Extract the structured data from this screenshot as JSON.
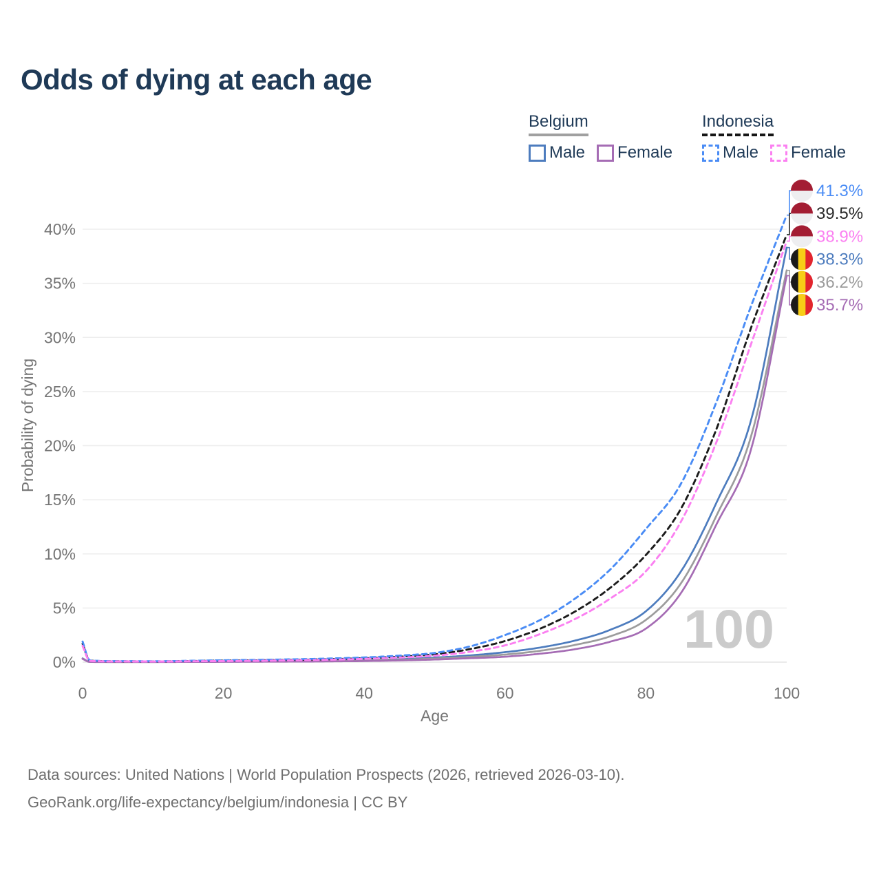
{
  "title": "Odds of dying at each age",
  "watermark_age": "100",
  "footer": {
    "line1": "Data sources: United Nations | World Population Prospects (2026, retrieved 2026-03-10).",
    "line2": "GeoRank.org/life-expectancy/belgium/indonesia | CC BY"
  },
  "legend": {
    "groups": [
      {
        "label": "Belgium",
        "line_style": "solid",
        "underline_color": "#a0a0a0",
        "items": [
          {
            "label": "Male",
            "color": "#4d7cbe"
          },
          {
            "label": "Female",
            "color": "#a56cb4"
          }
        ]
      },
      {
        "label": "Indonesia",
        "line_style": "dashed",
        "underline_color": "#161616",
        "items": [
          {
            "label": "Male",
            "color": "#4a8cf5"
          },
          {
            "label": "Female",
            "color": "#fb80f1"
          }
        ]
      }
    ]
  },
  "flags": {
    "indonesia": {
      "top": "#a31d33",
      "bottom": "#eeeef0"
    },
    "belgium": {
      "stripes": [
        "#1a1a1a",
        "#f7ce17",
        "#e2252e"
      ]
    }
  },
  "chart_data": {
    "type": "line",
    "title": "Odds of dying at each age",
    "xlabel": "Age",
    "ylabel": "Probability of dying",
    "xlim": [
      0,
      100
    ],
    "ylim": [
      0,
      43
    ],
    "grid": true,
    "x_ticks": [
      0,
      20,
      40,
      60,
      80,
      100
    ],
    "y_ticks": [
      0,
      5,
      10,
      15,
      20,
      25,
      30,
      35,
      40
    ],
    "y_tick_suffix": "%",
    "hover_age_indicator": "100",
    "ages": [
      0,
      1,
      5,
      10,
      15,
      20,
      25,
      30,
      35,
      40,
      45,
      50,
      55,
      60,
      65,
      70,
      75,
      80,
      85,
      90,
      95,
      100
    ],
    "series": [
      {
        "id": "belgium_male",
        "name": "Belgium Male",
        "country": "Belgium",
        "sex": "male",
        "color": "#4d7cbe",
        "dash": false,
        "end_value_pct": 38.3,
        "values": [
          0.35,
          0.03,
          0.02,
          0.02,
          0.04,
          0.07,
          0.08,
          0.1,
          0.13,
          0.18,
          0.27,
          0.42,
          0.62,
          0.92,
          1.35,
          2.0,
          3.0,
          4.7,
          8.4,
          14.7,
          22.5,
          38.3
        ]
      },
      {
        "id": "belgium_both",
        "name": "Belgium Both sexes",
        "country": "Belgium",
        "sex": "both",
        "color": "#9c9c9c",
        "dash": false,
        "end_value_pct": 36.2,
        "values": [
          0.32,
          0.03,
          0.015,
          0.015,
          0.03,
          0.05,
          0.06,
          0.08,
          0.1,
          0.14,
          0.21,
          0.33,
          0.49,
          0.7,
          1.05,
          1.6,
          2.4,
          3.9,
          7.3,
          13.5,
          21.0,
          36.2
        ]
      },
      {
        "id": "belgium_female",
        "name": "Belgium Female",
        "country": "Belgium",
        "sex": "female",
        "color": "#a56cb4",
        "dash": false,
        "end_value_pct": 35.7,
        "values": [
          0.3,
          0.02,
          0.01,
          0.01,
          0.02,
          0.03,
          0.04,
          0.05,
          0.07,
          0.1,
          0.16,
          0.24,
          0.36,
          0.5,
          0.78,
          1.2,
          1.9,
          3.1,
          6.4,
          12.7,
          19.8,
          35.7
        ]
      },
      {
        "id": "indonesia_both",
        "name": "Indonesia Both sexes",
        "country": "Indonesia",
        "sex": "both",
        "color": "#1c1c1c",
        "dash": true,
        "end_value_pct": 39.5,
        "values": [
          1.7,
          0.14,
          0.08,
          0.07,
          0.1,
          0.14,
          0.17,
          0.21,
          0.27,
          0.36,
          0.5,
          0.72,
          1.2,
          1.95,
          3.1,
          4.7,
          6.9,
          9.9,
          14.2,
          21.5,
          31.0,
          39.5
        ]
      },
      {
        "id": "indonesia_male",
        "name": "Indonesia Male",
        "country": "Indonesia",
        "sex": "male",
        "color": "#4a8cf5",
        "dash": true,
        "end_value_pct": 41.3,
        "values": [
          1.9,
          0.16,
          0.09,
          0.08,
          0.12,
          0.17,
          0.21,
          0.26,
          0.33,
          0.43,
          0.6,
          0.85,
          1.45,
          2.5,
          3.9,
          5.9,
          8.6,
          12.3,
          16.5,
          24.0,
          33.0,
          41.3
        ]
      },
      {
        "id": "indonesia_female",
        "name": "Indonesia Female",
        "country": "Indonesia",
        "sex": "female",
        "color": "#fb80f1",
        "dash": true,
        "end_value_pct": 38.9,
        "values": [
          1.5,
          0.12,
          0.07,
          0.06,
          0.08,
          0.1,
          0.13,
          0.17,
          0.22,
          0.3,
          0.42,
          0.6,
          0.95,
          1.55,
          2.6,
          4.0,
          5.9,
          8.4,
          13.0,
          20.3,
          29.5,
          38.9
        ]
      }
    ],
    "end_labels": [
      {
        "text": "41.3%",
        "series": "indonesia_male",
        "flag": "indonesia",
        "color": "#4a8cf5"
      },
      {
        "text": "39.5%",
        "series": "indonesia_both",
        "flag": "indonesia",
        "color": "#2a2a2a"
      },
      {
        "text": "38.9%",
        "series": "indonesia_female",
        "flag": "indonesia",
        "color": "#fb80f1"
      },
      {
        "text": "38.3%",
        "series": "belgium_male",
        "flag": "belgium",
        "color": "#4d7cbe"
      },
      {
        "text": "36.2%",
        "series": "belgium_both",
        "flag": "belgium",
        "color": "#9c9c9c"
      },
      {
        "text": "35.7%",
        "series": "belgium_female",
        "flag": "belgium",
        "color": "#a56cb4"
      }
    ]
  }
}
